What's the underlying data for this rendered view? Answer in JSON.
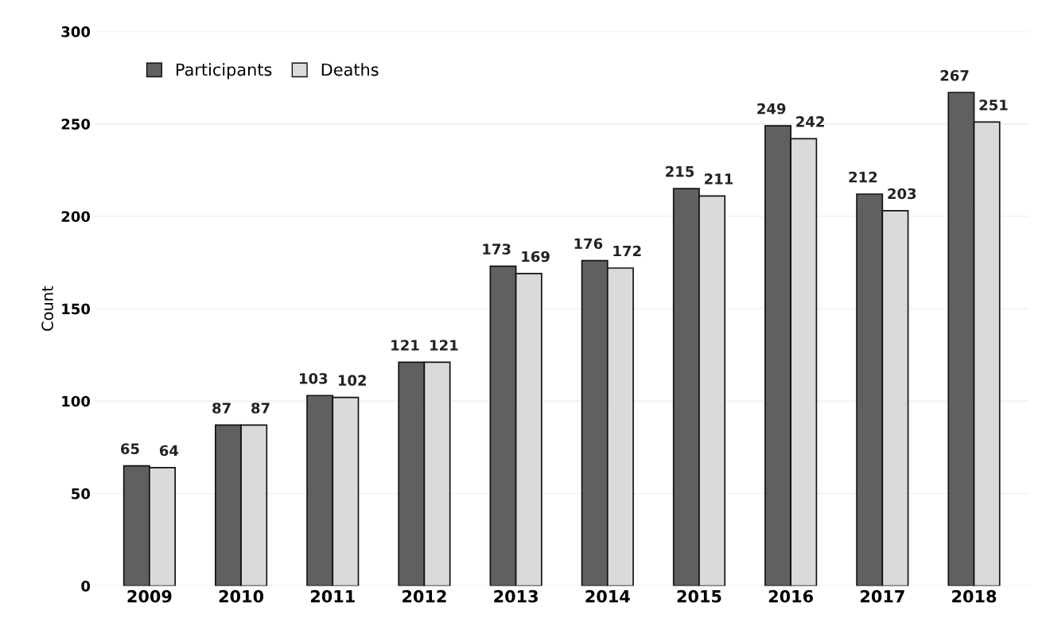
{
  "chart_data": {
    "type": "bar",
    "ylabel": "Count",
    "categories": [
      "2009",
      "2010",
      "2011",
      "2012",
      "2013",
      "2014",
      "2015",
      "2016",
      "2017",
      "2018"
    ],
    "series": [
      {
        "name": "Participants",
        "color": "#606060",
        "values": [
          65,
          87,
          103,
          121,
          173,
          176,
          215,
          249,
          212,
          267
        ]
      },
      {
        "name": "Deaths",
        "color": "#dadada",
        "values": [
          64,
          87,
          102,
          121,
          169,
          172,
          211,
          242,
          203,
          251
        ]
      }
    ],
    "ylim": [
      0,
      300
    ],
    "yticks": [
      0,
      50,
      100,
      150,
      200,
      250,
      300
    ],
    "grid": "y",
    "legend": "top left",
    "data_labels": true
  }
}
